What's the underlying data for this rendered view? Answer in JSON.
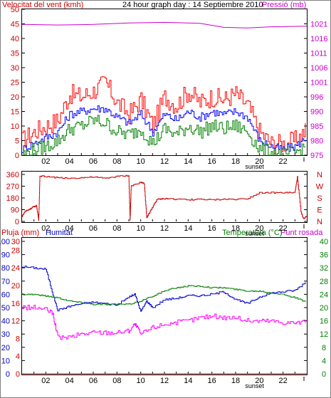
{
  "chart_data": [
    {
      "type": "line",
      "title": "24 hour graph day : 14 Septiembre 2010",
      "ylabel_left": "Velocitat del vent (kmh)",
      "ylabel_right": "Pressió (mb)",
      "xticks": [
        "02",
        "04",
        "06",
        "08",
        "10",
        "12",
        "14",
        "16",
        "18",
        "20",
        "22"
      ],
      "sunset_label": "sunset",
      "ylim_left": [
        0,
        50
      ],
      "yticks_left": [
        "0",
        "5",
        "10",
        "15",
        "20",
        "25",
        "30",
        "35",
        "40",
        "45",
        "50"
      ],
      "ylim_right": [
        975,
        1025
      ],
      "yticks_right": [
        "975",
        "980",
        "985",
        "990",
        "996",
        "1001",
        "1006",
        "1011",
        "1016",
        "1021"
      ],
      "colors": {
        "gust": "#ff0000",
        "average": "#0000ff",
        "wind": "#008000",
        "pressure": "#cc00cc",
        "axis_left": "#cc0000",
        "axis_right": "#cc00cc"
      },
      "series": [
        {
          "key": "gust",
          "axis": "left",
          "x": [
            0,
            1,
            2,
            3,
            4,
            5,
            6,
            7,
            8,
            9,
            10,
            11,
            12,
            13,
            14,
            15,
            16,
            17,
            18,
            19,
            20,
            21,
            22,
            23,
            24
          ],
          "values": [
            5,
            8,
            10,
            12,
            21,
            20,
            22,
            25,
            18,
            14,
            19,
            10,
            20,
            17,
            22,
            18,
            20,
            19,
            21,
            17,
            8,
            4,
            4,
            5,
            9
          ]
        },
        {
          "key": "average",
          "axis": "left",
          "x": [
            0,
            1,
            2,
            3,
            4,
            5,
            6,
            7,
            8,
            9,
            10,
            11,
            12,
            13,
            14,
            15,
            16,
            17,
            18,
            19,
            20,
            21,
            22,
            23,
            24
          ],
          "values": [
            2,
            4,
            6,
            8,
            14,
            15,
            16,
            16,
            13,
            11,
            14,
            8,
            14,
            12,
            15,
            13,
            15,
            14,
            15,
            13,
            5,
            3,
            2,
            3,
            6
          ]
        },
        {
          "key": "wind",
          "axis": "left",
          "x": [
            0,
            1,
            2,
            3,
            4,
            5,
            6,
            7,
            8,
            9,
            10,
            11,
            12,
            13,
            14,
            15,
            16,
            17,
            18,
            19,
            20,
            21,
            22,
            23,
            24
          ],
          "values": [
            0,
            2,
            3,
            5,
            9,
            10,
            12,
            11,
            8,
            7,
            9,
            4,
            9,
            7,
            10,
            8,
            10,
            9,
            10,
            8,
            2,
            1,
            0,
            1,
            3
          ]
        },
        {
          "key": "pressure",
          "axis": "right",
          "x": [
            0,
            3,
            6,
            9,
            12,
            15,
            17,
            19,
            21,
            24
          ],
          "values": [
            1019.8,
            1019.6,
            1019.8,
            1020.3,
            1020.5,
            1020.2,
            1018.8,
            1018.6,
            1019.0,
            1019.2
          ]
        }
      ]
    },
    {
      "type": "line",
      "ylim": [
        0,
        360
      ],
      "yticks_left": [
        "0",
        "90",
        "180",
        "270",
        "360"
      ],
      "yticks_right": [
        "N",
        "E",
        "S",
        "W",
        "N"
      ],
      "xticks": [
        "02",
        "04",
        "06",
        "08",
        "10",
        "12",
        "14",
        "16",
        "18",
        "20",
        "22"
      ],
      "sunset_label": "sunset",
      "colors": {
        "direction": "#cc0000",
        "axis_left": "#cc0000",
        "axis_right": "#cc0000"
      },
      "series": [
        {
          "key": "direction",
          "x": [
            0,
            0.3,
            0.6,
            0.9,
            1.2,
            1.4,
            1.5,
            1.9,
            3,
            4,
            5,
            6,
            7,
            8,
            9,
            9.1,
            9.2,
            10,
            10.3,
            10.5,
            10.7,
            11,
            11.4,
            12,
            13,
            14,
            15,
            16,
            17,
            18,
            19,
            20,
            21,
            22,
            23,
            23.2,
            23.5,
            23.7,
            24
          ],
          "values": [
            40,
            80,
            90,
            110,
            120,
            10,
            350,
            345,
            335,
            330,
            335,
            340,
            330,
            345,
            350,
            10,
            270,
            300,
            290,
            30,
            60,
            110,
            170,
            175,
            170,
            165,
            170,
            165,
            170,
            170,
            175,
            220,
            220,
            220,
            220,
            340,
            80,
            20,
            40
          ]
        }
      ]
    },
    {
      "type": "line",
      "ylabel_left_1": "Pluja (mm)",
      "ylabel_left_2": "Humitat",
      "ylabel_right_1": "Temperatura (°C)",
      "ylabel_right_2": "Punt rosada",
      "xticks": [
        "02",
        "04",
        "06",
        "08",
        "10",
        "12",
        "14",
        "16",
        "18",
        "20",
        "22"
      ],
      "sunset_label": "sunset",
      "ylim_rain": [
        0,
        30
      ],
      "yticks_rain": [
        "0",
        "4",
        "8",
        "12",
        "16",
        "20",
        "24",
        "28",
        "30"
      ],
      "ylim_humidity": [
        0,
        100
      ],
      "yticks_humidity": [
        "0",
        "10",
        "20",
        "30",
        "40",
        "50",
        "60",
        "70",
        "80",
        "90",
        "100"
      ],
      "ylim_temperature": [
        0,
        40
      ],
      "yticks_temperature": [
        "0",
        "4",
        "8",
        "12",
        "16",
        "20",
        "24",
        "28",
        "32",
        "36",
        "40"
      ],
      "colors": {
        "rain": "#cc0000",
        "humidity": "#0000cc",
        "temperature": "#008000",
        "dewpoint": "#ff00ff",
        "axis_rain": "#cc0000",
        "axis_humidity": "#0000cc",
        "axis_temperature": "#008000"
      },
      "series": [
        {
          "key": "humidity",
          "axis": "humidity",
          "x": [
            0,
            1,
            2,
            2.6,
            3,
            4,
            5,
            6,
            7,
            8,
            9,
            9.5,
            10,
            10.5,
            11,
            12,
            13,
            14,
            15,
            16,
            17,
            18,
            19,
            20,
            21,
            22,
            23,
            24
          ],
          "values": [
            81,
            80,
            79,
            60,
            48,
            51,
            53,
            54,
            53,
            52,
            58,
            60,
            47,
            55,
            50,
            56,
            57,
            59,
            59,
            60,
            62,
            56,
            53,
            58,
            61,
            62,
            63,
            70
          ]
        },
        {
          "key": "temperature",
          "axis": "temperature",
          "x": [
            0,
            1,
            2,
            3,
            4,
            5,
            6,
            7,
            8,
            9,
            10,
            11,
            12,
            13,
            14,
            15,
            16,
            17,
            18,
            19,
            20,
            21,
            22,
            23,
            24
          ],
          "values": [
            24,
            24,
            23.5,
            23,
            22,
            21.5,
            21,
            21,
            21,
            21,
            22,
            23.5,
            25,
            26,
            26.5,
            26.5,
            26,
            26,
            25.5,
            25,
            25,
            24.5,
            24,
            23,
            21.5
          ]
        },
        {
          "key": "dewpoint",
          "axis": "temperature",
          "x": [
            0,
            1,
            2,
            2.6,
            3,
            4,
            5,
            6,
            7,
            8,
            9,
            9.5,
            10,
            11,
            12,
            13,
            14,
            15,
            16,
            17,
            18,
            19,
            20,
            21,
            22,
            23,
            24
          ],
          "values": [
            20,
            20,
            19.5,
            18,
            11,
            11,
            12,
            12.5,
            12.5,
            12.5,
            13,
            15,
            12,
            14,
            15,
            15.5,
            16,
            17,
            17.5,
            17,
            17,
            16,
            16,
            16,
            15.5,
            15.5,
            15.5
          ]
        },
        {
          "key": "rain",
          "axis": "rain",
          "x": [
            0,
            24
          ],
          "values": [
            0,
            0
          ]
        }
      ]
    }
  ]
}
